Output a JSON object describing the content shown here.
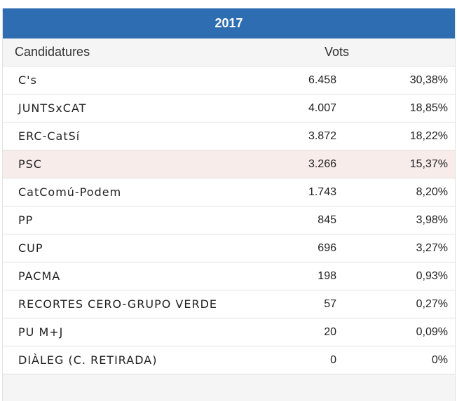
{
  "table": {
    "year": "2017",
    "header": {
      "candidatures": "Candidatures",
      "votes": "Vots"
    },
    "rows": [
      {
        "name": "C's",
        "votes": "6.458",
        "pct": "30,38%"
      },
      {
        "name": "JUNTSxCAT",
        "votes": "4.007",
        "pct": "18,85%"
      },
      {
        "name": "ERC-CatSí",
        "votes": "3.872",
        "pct": "18,22%"
      },
      {
        "name": "PSC",
        "votes": "3.266",
        "pct": "15,37%"
      },
      {
        "name": "CatComú-Podem",
        "votes": "1.743",
        "pct": "8,20%"
      },
      {
        "name": "PP",
        "votes": "845",
        "pct": "3,98%"
      },
      {
        "name": "CUP",
        "votes": "696",
        "pct": "3,27%"
      },
      {
        "name": "PACMA",
        "votes": "198",
        "pct": "0,93%"
      },
      {
        "name": "RECORTES CERO-GRUPO VERDE",
        "votes": "57",
        "pct": "0,27%"
      },
      {
        "name": "PU M+J",
        "votes": "20",
        "pct": "0,09%"
      },
      {
        "name": "DIÀLEG (C. RETIRADA)",
        "votes": "0",
        "pct": "0%"
      }
    ]
  },
  "colors": {
    "header_bg": "#2e6db2",
    "highlight_row_bg": "#f7ece9"
  }
}
